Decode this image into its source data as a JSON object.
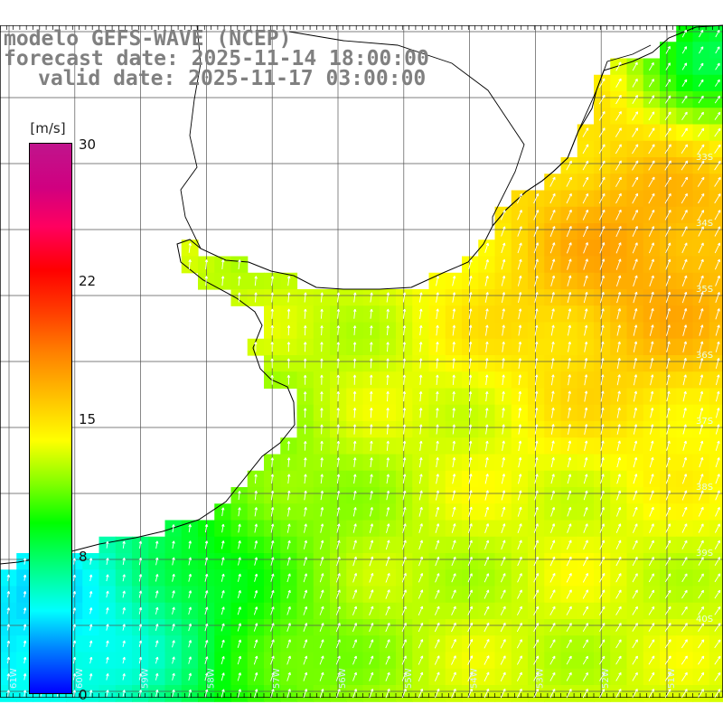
{
  "title": {
    "model": "modelo GEFS-WAVE (NCEP)",
    "forecast": "forecast date: 2025-11-14 18:00:00",
    "valid": "valid date: 2025-11-17 03:00:00"
  },
  "colorbar": {
    "unit": "[m/s]",
    "ticks": [
      "30",
      "22",
      "15",
      "8",
      "0"
    ],
    "tick_values": [
      30,
      22,
      15,
      8,
      0
    ],
    "range": [
      0,
      30
    ],
    "colors": [
      "#0000ff",
      "#0080ff",
      "#00ffff",
      "#00ff80",
      "#00ff00",
      "#80ff00",
      "#ffff00",
      "#ffc000",
      "#ff8000",
      "#ff4000",
      "#ff0000",
      "#ff0060",
      "#d00080",
      "#c0148c"
    ]
  },
  "lat_labels": [
    "33S",
    "34S",
    "35S",
    "36S",
    "37S",
    "38S",
    "39S",
    "40S"
  ],
  "lon_labels": [
    "61W",
    "60W",
    "59W",
    "58W",
    "57W",
    "56W",
    "55W",
    "54W",
    "53W",
    "52W",
    "51W"
  ],
  "field": {
    "variable": "wind speed",
    "typical_ocean_speed": 13,
    "max_speed_offshore": 17,
    "min_speed_southwest": 4
  }
}
